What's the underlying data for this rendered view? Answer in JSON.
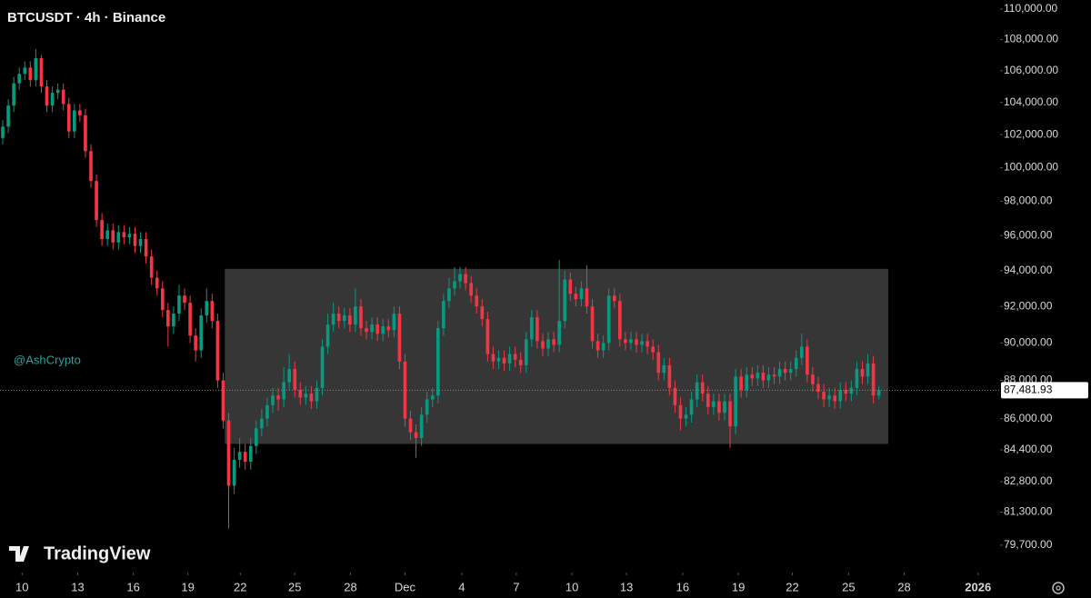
{
  "chart_data": {
    "type": "candlestick",
    "title": "BTCUSDT · 4h · Binance",
    "watermark": "@AshCrypto",
    "branding": "TradingView",
    "log_scale": true,
    "up_color": "#089981",
    "down_color": "#f23645",
    "xlim": [
      -0.5,
      181
    ],
    "ylim": [
      78400,
      110600
    ],
    "xticks": [
      {
        "value": 3.5,
        "label": "10"
      },
      {
        "value": 13.6,
        "label": "13"
      },
      {
        "value": 23.7,
        "label": "16"
      },
      {
        "value": 33.6,
        "label": "19"
      },
      {
        "value": 43.1,
        "label": "22"
      },
      {
        "value": 53.0,
        "label": "25"
      },
      {
        "value": 63.1,
        "label": "28"
      },
      {
        "value": 73.0,
        "label": "Dec"
      },
      {
        "value": 83.3,
        "label": "4"
      },
      {
        "value": 93.2,
        "label": "7"
      },
      {
        "value": 103.3,
        "label": "10"
      },
      {
        "value": 113.2,
        "label": "13"
      },
      {
        "value": 123.4,
        "label": "16"
      },
      {
        "value": 133.5,
        "label": "19"
      },
      {
        "value": 143.3,
        "label": "22"
      },
      {
        "value": 153.5,
        "label": "25"
      },
      {
        "value": 163.6,
        "label": "28"
      },
      {
        "value": 177.0,
        "label": "2026"
      }
    ],
    "yticks": [
      {
        "value": 110000,
        "label": "110,000.00"
      },
      {
        "value": 108000,
        "label": "108,000.00"
      },
      {
        "value": 106000,
        "label": "106,000.00"
      },
      {
        "value": 104000,
        "label": "104,000.00"
      },
      {
        "value": 102000,
        "label": "102,000.00"
      },
      {
        "value": 100000,
        "label": "100,000.00"
      },
      {
        "value": 98000,
        "label": "98,000.00"
      },
      {
        "value": 96000,
        "label": "96,000.00"
      },
      {
        "value": 94000,
        "label": "94,000.00"
      },
      {
        "value": 92000,
        "label": "92,000.00"
      },
      {
        "value": 90000,
        "label": "90,000.00"
      },
      {
        "value": 88000,
        "label": "88,000.00"
      },
      {
        "value": 86000,
        "label": "86,000.00"
      },
      {
        "value": 84400,
        "label": "84,400.00"
      },
      {
        "value": 82800,
        "label": "82,800.00"
      },
      {
        "value": 81300,
        "label": "81,300.00"
      },
      {
        "value": 79700,
        "label": "79,700.00"
      }
    ],
    "last_price": {
      "value": 87481.93,
      "label": "87,481.93"
    },
    "zone": {
      "xlim": [
        40.3,
        160.7
      ],
      "ylim": [
        84700,
        94100
      ],
      "color": "#363636"
    },
    "open": [
      101800,
      102500,
      103800,
      105200,
      105800,
      106200,
      105400,
      106800,
      105000,
      103800,
      104600,
      104800,
      103900,
      102200,
      103500,
      103200,
      101000,
      99200,
      96900,
      95800,
      96300,
      95600,
      96200,
      95900,
      96100,
      95400,
      95800,
      94800,
      93600,
      93000,
      91800,
      90900,
      91600,
      92600,
      92200,
      90400,
      89600,
      91500,
      92300,
      91200,
      88000,
      85900,
      82600,
      83900,
      84300,
      83800,
      84600,
      85500,
      86000,
      86700,
      87200,
      87000,
      87900,
      88600,
      87500,
      87100,
      87300,
      86900,
      87600,
      89800,
      91000,
      91600,
      91200,
      91500,
      91000,
      92000,
      90800,
      90600,
      91000,
      90500,
      90900,
      90700,
      91600,
      89000,
      86000,
      85300,
      85000,
      86200,
      87000,
      87200,
      90800,
      92300,
      93000,
      93400,
      93800,
      93300,
      92600,
      92000,
      91300,
      89400,
      89000,
      89200,
      88900,
      89400,
      89100,
      88800,
      90200,
      91400,
      90100,
      89700,
      90200,
      89900,
      91200,
      93500,
      92700,
      92400,
      93000,
      92000,
      90100,
      89600,
      90000,
      92600,
      92300,
      90200,
      90000,
      90200,
      89900,
      90100,
      89800,
      89500,
      88400,
      88800,
      87600,
      86700,
      86000,
      86200,
      87000,
      87900,
      87300,
      86600,
      86900,
      86300,
      86900,
      85600,
      88200,
      87500,
      88300,
      88100,
      88400,
      88000,
      88300,
      88200,
      88600,
      88400,
      88600,
      89200,
      89800,
      88300,
      87800,
      87400,
      87000,
      87200,
      86900,
      87500,
      87300,
      87600,
      88600,
      88200,
      88900,
      87200
    ],
    "high": [
      102900,
      104200,
      105600,
      106200,
      106600,
      106600,
      107400,
      107000,
      105400,
      105000,
      105200,
      105200,
      104300,
      103900,
      103900,
      103600,
      101400,
      99600,
      97300,
      96700,
      96700,
      96600,
      96600,
      96500,
      96500,
      96200,
      96200,
      95200,
      94000,
      93400,
      92200,
      92000,
      93200,
      93000,
      92600,
      90800,
      91900,
      93000,
      92700,
      91600,
      88400,
      86300,
      84500,
      85000,
      84700,
      85000,
      85900,
      86500,
      87100,
      87600,
      87600,
      88700,
      89400,
      89000,
      87900,
      87700,
      87700,
      88000,
      90200,
      91600,
      92200,
      92000,
      91900,
      91900,
      93000,
      92400,
      91200,
      91400,
      91400,
      91300,
      91300,
      92000,
      92000,
      89400,
      86400,
      85700,
      86600,
      87400,
      87600,
      91200,
      92700,
      93600,
      94200,
      94200,
      94200,
      93700,
      93000,
      92400,
      91700,
      89800,
      89600,
      89600,
      89800,
      89800,
      89500,
      90600,
      91800,
      91800,
      90500,
      90600,
      90600,
      94600,
      94000,
      93900,
      93100,
      93400,
      94300,
      92400,
      90500,
      90400,
      93000,
      93000,
      92700,
      90600,
      90600,
      90600,
      90500,
      90500,
      90200,
      89900,
      89200,
      89200,
      88000,
      87100,
      86600,
      87400,
      88300,
      88300,
      87700,
      87300,
      87300,
      87300,
      87300,
      88600,
      88600,
      88700,
      88700,
      88800,
      88800,
      88700,
      88700,
      89000,
      89000,
      89000,
      89600,
      90500,
      90200,
      88700,
      88200,
      87800,
      87600,
      87600,
      87900,
      87900,
      88000,
      89000,
      89000,
      89400,
      89300,
      87700
    ],
    "low": [
      101400,
      102100,
      103400,
      104800,
      105400,
      105000,
      105000,
      104600,
      103400,
      103400,
      104200,
      103500,
      101800,
      101800,
      102800,
      100600,
      98800,
      96500,
      95400,
      95400,
      95200,
      95200,
      95500,
      95500,
      95000,
      95000,
      94400,
      93200,
      92600,
      91400,
      89800,
      90500,
      91200,
      91800,
      90000,
      89000,
      89200,
      91100,
      90800,
      87600,
      85500,
      80500,
      82200,
      83500,
      83400,
      83400,
      84200,
      85100,
      85600,
      86300,
      86400,
      86600,
      87500,
      87100,
      86700,
      86700,
      86500,
      86500,
      87200,
      89400,
      90600,
      90800,
      90800,
      90600,
      90600,
      90400,
      90200,
      90200,
      90100,
      90100,
      90300,
      90300,
      88600,
      85600,
      84900,
      84000,
      84600,
      85800,
      86600,
      86800,
      90400,
      91900,
      92600,
      93000,
      92900,
      92200,
      91600,
      90900,
      89000,
      88600,
      88600,
      88500,
      88500,
      88700,
      88400,
      88400,
      89800,
      89700,
      89300,
      89300,
      89500,
      89500,
      90800,
      92300,
      92000,
      92000,
      91600,
      89700,
      89200,
      89200,
      89600,
      91900,
      89800,
      89600,
      89600,
      89500,
      89500,
      89400,
      89100,
      88000,
      88000,
      87200,
      86300,
      85400,
      85600,
      85800,
      86600,
      86900,
      86200,
      86200,
      85900,
      85900,
      84500,
      85200,
      87100,
      87100,
      87700,
      87700,
      87600,
      87600,
      87800,
      87800,
      88000,
      88000,
      88200,
      88800,
      87900,
      87400,
      87000,
      86600,
      86600,
      86500,
      86500,
      86900,
      86900,
      87200,
      87800,
      87800,
      86800,
      87000
    ],
    "close": [
      102500,
      103800,
      105200,
      105800,
      106200,
      105400,
      106800,
      105000,
      103800,
      104600,
      104800,
      103900,
      102200,
      103500,
      103200,
      101000,
      99200,
      96900,
      95800,
      96300,
      95600,
      96200,
      95900,
      96100,
      95400,
      95800,
      94800,
      93600,
      93000,
      91800,
      90900,
      91600,
      92600,
      92200,
      90400,
      89600,
      91500,
      92300,
      91200,
      88000,
      85900,
      82600,
      83900,
      84300,
      83800,
      84600,
      85500,
      86000,
      86700,
      87200,
      87000,
      87900,
      88600,
      87500,
      87100,
      87300,
      86900,
      87600,
      89800,
      91000,
      91600,
      91200,
      91500,
      91000,
      92000,
      90800,
      90600,
      91000,
      90500,
      90900,
      90700,
      91600,
      89000,
      86000,
      85300,
      85000,
      86200,
      87000,
      87200,
      90800,
      92300,
      93000,
      93400,
      93800,
      93300,
      92600,
      92000,
      91300,
      89400,
      89000,
      89200,
      88900,
      89400,
      89100,
      88800,
      90200,
      91400,
      90100,
      89700,
      90200,
      89900,
      91200,
      93500,
      92700,
      92400,
      93000,
      92000,
      90100,
      89600,
      90000,
      92600,
      92300,
      90200,
      90000,
      90200,
      89900,
      90100,
      89800,
      89500,
      88400,
      88800,
      87600,
      86700,
      86000,
      86200,
      87000,
      87900,
      87300,
      86600,
      86900,
      86300,
      86900,
      85600,
      88200,
      87500,
      88300,
      88100,
      88400,
      88000,
      88300,
      88200,
      88600,
      88400,
      88600,
      89200,
      89800,
      88300,
      87800,
      87400,
      87000,
      87200,
      86900,
      87500,
      87300,
      87600,
      88600,
      88200,
      88900,
      87200,
      87481.93
    ]
  }
}
